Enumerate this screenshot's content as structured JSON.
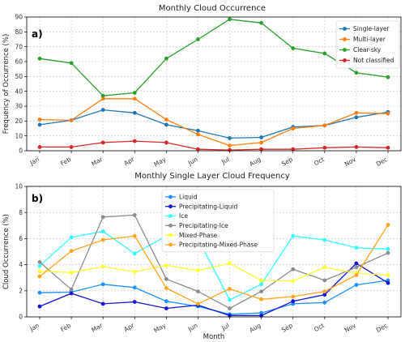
{
  "chart_data": [
    {
      "type": "line",
      "title": "Monthly Cloud Occurrence",
      "panel_label": "a)",
      "xlabel": "",
      "ylabel": "Frequency of Occurrence (%)",
      "ylim": [
        0,
        90
      ],
      "yticks": [
        0,
        10,
        20,
        30,
        40,
        50,
        60,
        70,
        80,
        90
      ],
      "categories": [
        "Jan",
        "Feb",
        "Mar",
        "Apr",
        "May",
        "Jun",
        "Jul",
        "Aug",
        "Sep",
        "Oct",
        "Nov",
        "Dec"
      ],
      "grid": true,
      "legend_position": "top-right",
      "series": [
        {
          "name": "Single-layer",
          "color": "#1f77b4",
          "values": [
            17.5,
            20.5,
            27.5,
            25.5,
            17.5,
            13.5,
            8.5,
            9,
            16,
            17,
            22.5,
            26
          ]
        },
        {
          "name": "Multi-layer",
          "color": "#ff7f0e",
          "values": [
            21,
            20.5,
            35,
            35,
            21,
            11,
            3.5,
            5.5,
            15,
            17,
            25.5,
            25
          ]
        },
        {
          "name": "Clear-sky",
          "color": "#2ca02c",
          "values": [
            62,
            59,
            37,
            39,
            62,
            75,
            88.5,
            86,
            69,
            65.5,
            52.5,
            49.5
          ]
        },
        {
          "name": "Not classified",
          "color": "#d62728",
          "values": [
            2.5,
            2.5,
            5.5,
            6.5,
            5.5,
            1,
            0.5,
            1,
            1,
            2,
            2.5,
            2
          ]
        }
      ]
    },
    {
      "type": "line",
      "title": "Monthly Single Layer Cloud Frequency",
      "panel_label": "b)",
      "xlabel": "Month",
      "ylabel": "Cloud Occurrence (%)",
      "ylim": [
        0,
        10
      ],
      "yticks": [
        0,
        2,
        4,
        6,
        8,
        10
      ],
      "categories": [
        "Jan",
        "Feb",
        "Mar",
        "Apr",
        "May",
        "Jun",
        "Jul",
        "Aug",
        "Sep",
        "Oct",
        "Nov",
        "Dec"
      ],
      "grid": true,
      "legend_position": "top-center",
      "series": [
        {
          "name": "Liquid",
          "color": "#1e90ff",
          "values": [
            1.85,
            1.9,
            2.5,
            2.25,
            1.2,
            0.8,
            0.2,
            0.3,
            1.0,
            1.1,
            2.45,
            2.8
          ]
        },
        {
          "name": "Precipitating-Liquid",
          "color": "#1414d2",
          "values": [
            0.8,
            1.8,
            1.0,
            1.15,
            0.65,
            0.9,
            0.1,
            0.1,
            1.2,
            1.7,
            4.1,
            2.6
          ]
        },
        {
          "name": "Ice",
          "color": "#33ffff",
          "values": [
            3.9,
            6.1,
            6.55,
            4.85,
            6.2,
            6.0,
            1.3,
            2.5,
            6.2,
            5.9,
            5.3,
            5.2
          ]
        },
        {
          "name": "Precipitating-Ice",
          "color": "#8c8c8c",
          "values": [
            4.2,
            2.1,
            7.65,
            7.8,
            2.9,
            1.95,
            0.65,
            1.95,
            3.65,
            2.8,
            3.8,
            4.9
          ]
        },
        {
          "name": "Mixed-Phase",
          "color": "#ffff33",
          "values": [
            3.5,
            3.4,
            3.85,
            3.45,
            3.95,
            3.55,
            4.1,
            2.8,
            2.75,
            3.8,
            3.35,
            3.2
          ]
        },
        {
          "name": "Precipitating-Mixed-Phase",
          "color": "#ffa51e",
          "values": [
            3.1,
            5.05,
            5.9,
            6.2,
            2.2,
            1.0,
            2.15,
            1.35,
            1.55,
            1.95,
            3.2,
            7.05
          ]
        }
      ]
    }
  ]
}
